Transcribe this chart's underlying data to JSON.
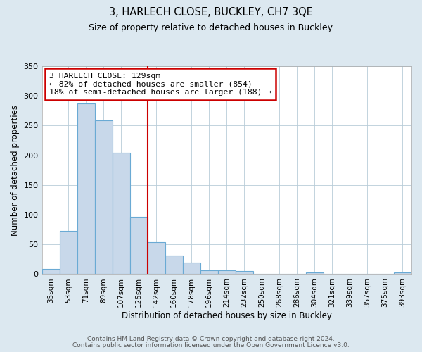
{
  "title": "3, HARLECH CLOSE, BUCKLEY, CH7 3QE",
  "subtitle": "Size of property relative to detached houses in Buckley",
  "xlabel": "Distribution of detached houses by size in Buckley",
  "ylabel": "Number of detached properties",
  "bar_labels": [
    "35sqm",
    "53sqm",
    "71sqm",
    "89sqm",
    "107sqm",
    "125sqm",
    "142sqm",
    "160sqm",
    "178sqm",
    "196sqm",
    "214sqm",
    "232sqm",
    "250sqm",
    "268sqm",
    "286sqm",
    "304sqm",
    "321sqm",
    "339sqm",
    "357sqm",
    "375sqm",
    "393sqm"
  ],
  "bar_heights": [
    9,
    73,
    287,
    259,
    204,
    97,
    54,
    31,
    20,
    6,
    7,
    5,
    0,
    0,
    0,
    3,
    0,
    0,
    0,
    0,
    3
  ],
  "bar_color": "#c8d8ea",
  "bar_edge_color": "#6aaad4",
  "vline_index": 5.5,
  "vline_color": "#cc0000",
  "annotation_text": "3 HARLECH CLOSE: 129sqm\n← 82% of detached houses are smaller (854)\n18% of semi-detached houses are larger (188) →",
  "annotation_box_color": "#ffffff",
  "annotation_box_edge_color": "#cc0000",
  "ylim": [
    0,
    350
  ],
  "yticks": [
    0,
    50,
    100,
    150,
    200,
    250,
    300,
    350
  ],
  "title_fontsize": 10.5,
  "subtitle_fontsize": 9,
  "footer_line1": "Contains HM Land Registry data © Crown copyright and database right 2024.",
  "footer_line2": "Contains public sector information licensed under the Open Government Licence v3.0.",
  "background_color": "#dce8f0",
  "plot_background_color": "#ffffff",
  "grid_color": "#b8ccd8"
}
